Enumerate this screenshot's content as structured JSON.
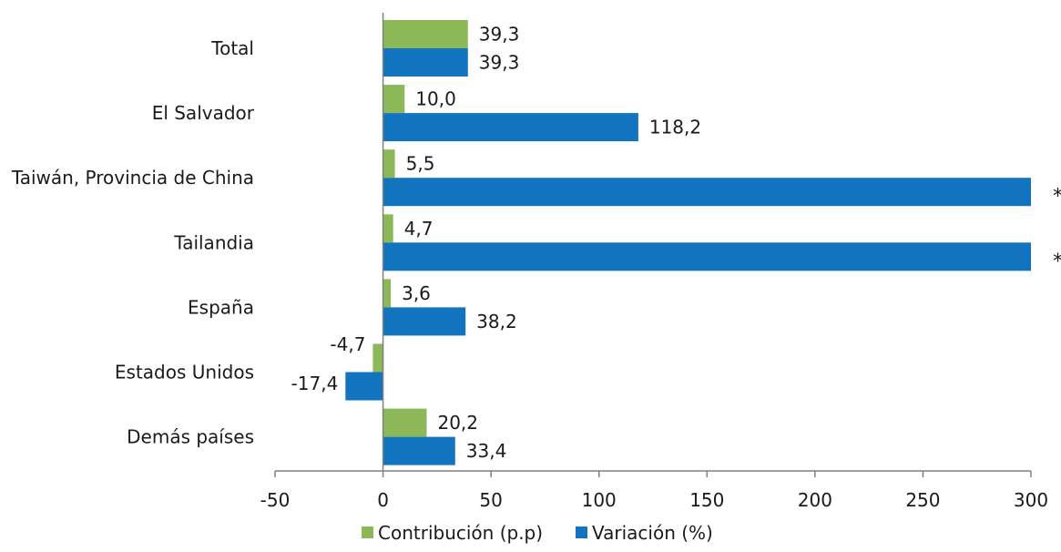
{
  "chart_data": {
    "type": "bar",
    "orientation": "horizontal",
    "categories": [
      "Total",
      "El Salvador",
      "Taiwán, Provincia de China",
      "Tailandia",
      "España",
      "Estados Unidos",
      "Demás países"
    ],
    "series": [
      {
        "name": "Contribución (p.p)",
        "values": [
          39.3,
          10.0,
          5.5,
          4.7,
          3.6,
          -4.7,
          20.2
        ],
        "labels": [
          "39,3",
          "10,0",
          "5,5",
          "4,7",
          "3,6",
          "-4,7",
          "20,2"
        ],
        "color": "#8cb857"
      },
      {
        "name": "Variación (%)",
        "values": [
          39.3,
          118.2,
          300,
          300,
          38.2,
          -17.4,
          33.4
        ],
        "labels": [
          "39,3",
          "118,2",
          "",
          "",
          "38,2",
          "-17,4",
          "33,4"
        ],
        "truncated_marks": [
          "",
          "",
          "*",
          "*",
          "",
          "",
          ""
        ],
        "color": "#1273bf"
      }
    ],
    "xlim": [
      -50,
      300
    ],
    "xticks": [
      -50,
      0,
      50,
      100,
      150,
      200,
      250,
      300
    ],
    "xtick_labels": [
      "-50",
      "0",
      "50",
      "100",
      "150",
      "200",
      "250",
      "300"
    ],
    "title": "",
    "xlabel": "",
    "ylabel": "",
    "grid": false,
    "legend_position": "bottom"
  }
}
